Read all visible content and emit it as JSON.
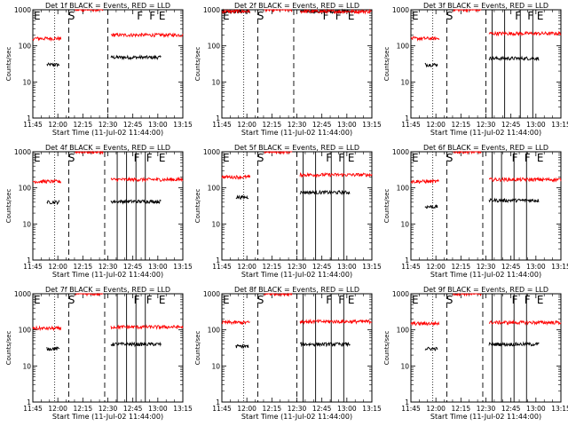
{
  "chart_data": [
    {
      "type": "line",
      "title": "Det 1f BLACK = Events, RED = LLD",
      "ylabel": "Counts/sec",
      "xlabel": "Start Time (11-Jul-02 11:44:00)",
      "x_ticks": [
        "11:45",
        "12:00",
        "12:15",
        "12:30",
        "12:45",
        "13:00",
        "13:15"
      ],
      "x_range_minutes": [
        0,
        96
      ],
      "y_ticks": [
        "1",
        "10",
        "100",
        "1000"
      ],
      "ylim": [
        1,
        1000
      ],
      "yscale": "log",
      "markers": [
        {
          "label": "E",
          "minute": 0
        },
        {
          "label": "S",
          "minute": 22
        },
        {
          "label": "F",
          "minute": 66
        },
        {
          "label": "F",
          "minute": 74
        },
        {
          "label": "E",
          "minute": 80
        }
      ],
      "dotted_lines": [
        14
      ],
      "dashed_lines": [
        23,
        48
      ],
      "solid_lines": [],
      "series": [
        {
          "name": "Events",
          "color": "#000000",
          "segments": [
            {
              "start": 9,
              "end": 17,
              "level": 30
            },
            {
              "start": 50,
              "end": 82,
              "level": 48
            }
          ]
        },
        {
          "name": "LLD",
          "color": "#ff0000",
          "segments": [
            {
              "start": 0,
              "end": 18,
              "level": 160
            },
            {
              "start": 27,
              "end": 45,
              "level": 1000
            },
            {
              "start": 50,
              "end": 96,
              "level": 200
            }
          ]
        }
      ]
    },
    {
      "type": "line",
      "title": "Det 2f BLACK = Events, RED = LLD",
      "ylabel": "Counts/sec",
      "xlabel": "Start Time (11-Jul-02 11:44:00)",
      "x_ticks": [
        "11:45",
        "12:00",
        "12:15",
        "12:30",
        "12:45",
        "13:00",
        "13:15"
      ],
      "x_range_minutes": [
        0,
        96
      ],
      "y_ticks": [
        "1",
        "10",
        "100",
        "1000"
      ],
      "ylim": [
        1,
        1000
      ],
      "yscale": "log",
      "markers": [
        {
          "label": "E",
          "minute": 0
        },
        {
          "label": "S",
          "minute": 22
        },
        {
          "label": "F",
          "minute": 64
        },
        {
          "label": "F",
          "minute": 72
        },
        {
          "label": "E",
          "minute": 80
        }
      ],
      "dotted_lines": [
        14
      ],
      "dashed_lines": [
        23,
        46
      ],
      "solid_lines": [],
      "series": [
        {
          "name": "Events",
          "color": "#000000",
          "segments": [
            {
              "start": 0,
              "end": 18,
              "level": 900
            },
            {
              "start": 50,
              "end": 82,
              "level": 900
            }
          ]
        },
        {
          "name": "LLD",
          "color": "#ff0000",
          "segments": [
            {
              "start": 0,
              "end": 18,
              "level": 900
            },
            {
              "start": 27,
              "end": 45,
              "level": 1000
            },
            {
              "start": 50,
              "end": 96,
              "level": 900
            }
          ]
        }
      ]
    },
    {
      "type": "line",
      "title": "Det 3f BLACK = Events, RED = LLD",
      "ylabel": "Counts/sec",
      "xlabel": "Start Time (11-Jul-02 11:44:00)",
      "x_ticks": [
        "11:45",
        "12:00",
        "12:15",
        "12:30",
        "12:45",
        "13:00",
        "13:15"
      ],
      "x_range_minutes": [
        0,
        96
      ],
      "y_ticks": [
        "1",
        "10",
        "100",
        "1000"
      ],
      "ylim": [
        1,
        1000
      ],
      "yscale": "log",
      "markers": [
        {
          "label": "E",
          "minute": 0
        },
        {
          "label": "S",
          "minute": 22
        },
        {
          "label": "F",
          "minute": 66
        },
        {
          "label": "F",
          "minute": 74
        },
        {
          "label": "E",
          "minute": 80
        }
      ],
      "dotted_lines": [
        14
      ],
      "dashed_lines": [
        23,
        48
      ],
      "solid_lines": [
        52,
        60,
        70,
        78
      ],
      "series": [
        {
          "name": "Events",
          "color": "#000000",
          "segments": [
            {
              "start": 9,
              "end": 17,
              "level": 30
            },
            {
              "start": 50,
              "end": 82,
              "level": 45
            }
          ]
        },
        {
          "name": "LLD",
          "color": "#ff0000",
          "segments": [
            {
              "start": 0,
              "end": 18,
              "level": 160
            },
            {
              "start": 27,
              "end": 45,
              "level": 1000
            },
            {
              "start": 50,
              "end": 96,
              "level": 220
            }
          ]
        }
      ]
    },
    {
      "type": "line",
      "title": "Det 4f BLACK = Events, RED = LLD",
      "ylabel": "Counts/sec",
      "xlabel": "Start Time (11-Jul-02 11:44:00)",
      "x_ticks": [
        "11:45",
        "12:00",
        "12:15",
        "12:30",
        "12:45",
        "13:00",
        "13:15"
      ],
      "x_range_minutes": [
        0,
        96
      ],
      "y_ticks": [
        "1",
        "10",
        "100",
        "1000"
      ],
      "ylim": [
        1,
        1000
      ],
      "yscale": "log",
      "markers": [
        {
          "label": "E",
          "minute": 0
        },
        {
          "label": "S",
          "minute": 22
        },
        {
          "label": "F",
          "minute": 64
        },
        {
          "label": "F",
          "minute": 72
        },
        {
          "label": "E",
          "minute": 80
        }
      ],
      "dotted_lines": [
        14
      ],
      "dashed_lines": [
        23,
        46
      ],
      "solid_lines": [
        54,
        60,
        66,
        72
      ],
      "series": [
        {
          "name": "Events",
          "color": "#000000",
          "segments": [
            {
              "start": 9,
              "end": 17,
              "level": 40
            },
            {
              "start": 50,
              "end": 82,
              "level": 42
            }
          ]
        },
        {
          "name": "LLD",
          "color": "#ff0000",
          "segments": [
            {
              "start": 0,
              "end": 18,
              "level": 150
            },
            {
              "start": 27,
              "end": 45,
              "level": 1000
            },
            {
              "start": 50,
              "end": 96,
              "level": 170
            }
          ]
        }
      ]
    },
    {
      "type": "line",
      "title": "Det 5f BLACK = Events, RED = LLD",
      "ylabel": "Counts/sec",
      "xlabel": "Start Time (11-Jul-02 11:44:00)",
      "x_ticks": [
        "11:45",
        "12:00",
        "12:15",
        "12:30",
        "12:45",
        "13:00",
        "13:15"
      ],
      "x_range_minutes": [
        0,
        96
      ],
      "y_ticks": [
        "1",
        "10",
        "100",
        "1000"
      ],
      "ylim": [
        1,
        1000
      ],
      "yscale": "log",
      "markers": [
        {
          "label": "E",
          "minute": 0
        },
        {
          "label": "S",
          "minute": 22
        },
        {
          "label": "F",
          "minute": 66
        },
        {
          "label": "F",
          "minute": 74
        },
        {
          "label": "E",
          "minute": 80
        }
      ],
      "dotted_lines": [
        14
      ],
      "dashed_lines": [
        23,
        48
      ],
      "solid_lines": [
        52,
        60,
        70,
        78
      ],
      "series": [
        {
          "name": "Events",
          "color": "#000000",
          "segments": [
            {
              "start": 9,
              "end": 17,
              "level": 55
            },
            {
              "start": 50,
              "end": 82,
              "level": 75
            }
          ]
        },
        {
          "name": "LLD",
          "color": "#ff0000",
          "segments": [
            {
              "start": 0,
              "end": 18,
              "level": 200
            },
            {
              "start": 27,
              "end": 45,
              "level": 1000
            },
            {
              "start": 50,
              "end": 96,
              "level": 230
            }
          ]
        }
      ]
    },
    {
      "type": "line",
      "title": "Det 6f BLACK = Events, RED = LLD",
      "ylabel": "Counts/sec",
      "xlabel": "Start Time (11-Jul-02 11:44:00)",
      "x_ticks": [
        "11:45",
        "12:00",
        "12:15",
        "12:30",
        "12:45",
        "13:00",
        "13:15"
      ],
      "x_range_minutes": [
        0,
        96
      ],
      "y_ticks": [
        "1",
        "10",
        "100",
        "1000"
      ],
      "ylim": [
        1,
        1000
      ],
      "yscale": "log",
      "markers": [
        {
          "label": "E",
          "minute": 0
        },
        {
          "label": "S",
          "minute": 22
        },
        {
          "label": "F",
          "minute": 64
        },
        {
          "label": "F",
          "minute": 72
        },
        {
          "label": "E",
          "minute": 80
        }
      ],
      "dotted_lines": [
        14
      ],
      "dashed_lines": [
        23,
        46
      ],
      "solid_lines": [
        52,
        58,
        66,
        74
      ],
      "series": [
        {
          "name": "Events",
          "color": "#000000",
          "segments": [
            {
              "start": 9,
              "end": 17,
              "level": 30
            },
            {
              "start": 50,
              "end": 82,
              "level": 45
            }
          ]
        },
        {
          "name": "LLD",
          "color": "#ff0000",
          "segments": [
            {
              "start": 0,
              "end": 18,
              "level": 150
            },
            {
              "start": 27,
              "end": 45,
              "level": 1000
            },
            {
              "start": 50,
              "end": 96,
              "level": 170
            }
          ]
        }
      ]
    },
    {
      "type": "line",
      "title": "Det 7f BLACK = Events, RED = LLD",
      "ylabel": "Counts/sec",
      "xlabel": "Start Time (11-Jul-02 11:44:00)",
      "x_ticks": [
        "11:45",
        "12:00",
        "12:15",
        "12:30",
        "12:45",
        "13:00",
        "13:15"
      ],
      "x_range_minutes": [
        0,
        96
      ],
      "y_ticks": [
        "1",
        "10",
        "100",
        "1000"
      ],
      "ylim": [
        1,
        1000
      ],
      "yscale": "log",
      "markers": [
        {
          "label": "E",
          "minute": 0
        },
        {
          "label": "S",
          "minute": 22
        },
        {
          "label": "F",
          "minute": 64
        },
        {
          "label": "F",
          "minute": 72
        },
        {
          "label": "E",
          "minute": 80
        }
      ],
      "dotted_lines": [
        14
      ],
      "dashed_lines": [
        23,
        46
      ],
      "solid_lines": [
        54,
        60,
        66,
        72
      ],
      "series": [
        {
          "name": "Events",
          "color": "#000000",
          "segments": [
            {
              "start": 9,
              "end": 17,
              "level": 30
            },
            {
              "start": 50,
              "end": 82,
              "level": 40
            }
          ]
        },
        {
          "name": "LLD",
          "color": "#ff0000",
          "segments": [
            {
              "start": 0,
              "end": 18,
              "level": 110
            },
            {
              "start": 27,
              "end": 45,
              "level": 1000
            },
            {
              "start": 50,
              "end": 96,
              "level": 120
            }
          ]
        }
      ]
    },
    {
      "type": "line",
      "title": "Det 8f BLACK = Events, RED = LLD",
      "ylabel": "Counts/sec",
      "xlabel": "Start Time (11-Jul-02 11:44:00)",
      "x_ticks": [
        "11:45",
        "12:00",
        "12:15",
        "12:30",
        "12:45",
        "13:00",
        "13:15"
      ],
      "x_range_minutes": [
        0,
        96
      ],
      "y_ticks": [
        "1",
        "10",
        "100",
        "1000"
      ],
      "ylim": [
        1,
        1000
      ],
      "yscale": "log",
      "markers": [
        {
          "label": "E",
          "minute": 0
        },
        {
          "label": "S",
          "minute": 22
        },
        {
          "label": "F",
          "minute": 66
        },
        {
          "label": "F",
          "minute": 74
        },
        {
          "label": "E",
          "minute": 80
        }
      ],
      "dotted_lines": [
        14
      ],
      "dashed_lines": [
        23,
        48
      ],
      "solid_lines": [
        52,
        60,
        70,
        78
      ],
      "series": [
        {
          "name": "Events",
          "color": "#000000",
          "segments": [
            {
              "start": 9,
              "end": 17,
              "level": 35
            },
            {
              "start": 50,
              "end": 82,
              "level": 40
            }
          ]
        },
        {
          "name": "LLD",
          "color": "#ff0000",
          "segments": [
            {
              "start": 0,
              "end": 18,
              "level": 160
            },
            {
              "start": 27,
              "end": 45,
              "level": 1000
            },
            {
              "start": 50,
              "end": 96,
              "level": 170
            }
          ]
        }
      ]
    },
    {
      "type": "line",
      "title": "Det 9f BLACK = Events, RED = LLD",
      "ylabel": "Counts/sec",
      "xlabel": "Start Time (11-Jul-02 11:44:00)",
      "x_ticks": [
        "11:45",
        "12:00",
        "12:15",
        "12:30",
        "12:45",
        "13:00",
        "13:15"
      ],
      "x_range_minutes": [
        0,
        96
      ],
      "y_ticks": [
        "1",
        "10",
        "100",
        "1000"
      ],
      "ylim": [
        1,
        1000
      ],
      "yscale": "log",
      "markers": [
        {
          "label": "E",
          "minute": 0
        },
        {
          "label": "S",
          "minute": 22
        },
        {
          "label": "F",
          "minute": 64
        },
        {
          "label": "F",
          "minute": 72
        },
        {
          "label": "E",
          "minute": 80
        }
      ],
      "dotted_lines": [
        14
      ],
      "dashed_lines": [
        23,
        46
      ],
      "solid_lines": [
        52,
        58,
        66,
        74
      ],
      "series": [
        {
          "name": "Events",
          "color": "#000000",
          "segments": [
            {
              "start": 9,
              "end": 17,
              "level": 30
            },
            {
              "start": 50,
              "end": 82,
              "level": 40
            }
          ]
        },
        {
          "name": "LLD",
          "color": "#ff0000",
          "segments": [
            {
              "start": 0,
              "end": 18,
              "level": 150
            },
            {
              "start": 27,
              "end": 45,
              "level": 1000
            },
            {
              "start": 50,
              "end": 96,
              "level": 160
            }
          ]
        }
      ]
    }
  ]
}
